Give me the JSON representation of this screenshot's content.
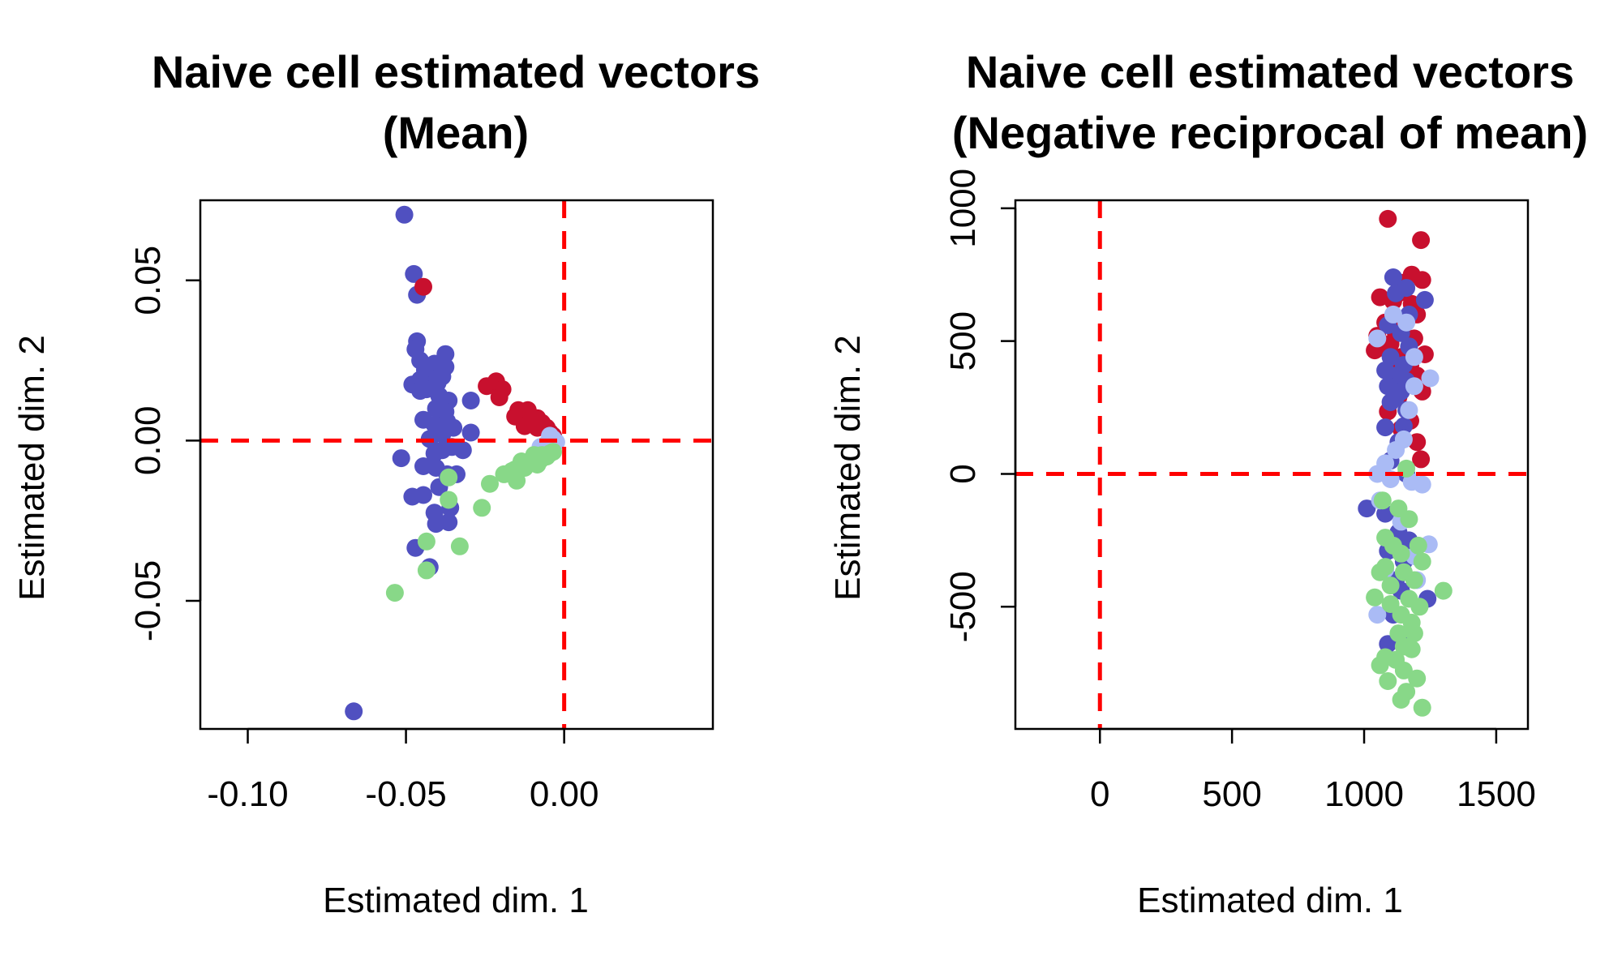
{
  "chart_data": [
    {
      "type": "scatter",
      "title_lines": [
        "Naive cell estimated vectors",
        "(Mean)"
      ],
      "xlabel": "Estimated dim. 1",
      "ylabel": "Estimated dim. 2",
      "xlim": [
        -0.115,
        0.047
      ],
      "ylim": [
        -0.09,
        0.075
      ],
      "xticks": [
        -0.1,
        -0.05,
        0.0
      ],
      "xtick_labels": [
        "-0.10",
        "-0.05",
        "0.00"
      ],
      "yticks": [
        -0.05,
        0.0,
        0.05
      ],
      "ytick_labels": [
        "-0.05",
        "0.00",
        "0.05"
      ],
      "ref_lines": {
        "x": 0,
        "y": 0
      },
      "grid": false,
      "series": [
        {
          "color": "#5050c0",
          "points": [
            [
              -0.0505,
              0.0705
            ],
            [
              -0.0475,
              0.052
            ],
            [
              -0.0465,
              0.0455
            ],
            [
              -0.0465,
              0.031
            ],
            [
              -0.047,
              0.0285
            ],
            [
              -0.0455,
              0.025
            ],
            [
              -0.044,
              0.022
            ],
            [
              -0.041,
              0.024
            ],
            [
              -0.0375,
              0.027
            ],
            [
              -0.0375,
              0.023
            ],
            [
              -0.0385,
              0.02
            ],
            [
              -0.04,
              0.018
            ],
            [
              -0.0425,
              0.0195
            ],
            [
              -0.0455,
              0.019
            ],
            [
              -0.048,
              0.0175
            ],
            [
              -0.0455,
              0.0155
            ],
            [
              -0.0435,
              0.016
            ],
            [
              -0.0395,
              0.014
            ],
            [
              -0.0365,
              0.0125
            ],
            [
              -0.0375,
              0.009
            ],
            [
              -0.0405,
              0.01
            ],
            [
              -0.0445,
              0.0065
            ],
            [
              -0.041,
              0.005
            ],
            [
              -0.037,
              0.006
            ],
            [
              -0.035,
              0.004
            ],
            [
              -0.0385,
              0.002
            ],
            [
              -0.0425,
              0.0005
            ],
            [
              -0.0355,
              -0.002
            ],
            [
              -0.0385,
              -0.003
            ],
            [
              -0.041,
              -0.004
            ],
            [
              -0.0445,
              -0.008
            ],
            [
              -0.0405,
              -0.0085
            ],
            [
              -0.037,
              -0.0105
            ],
            [
              -0.034,
              -0.0105
            ],
            [
              -0.0515,
              -0.0055
            ],
            [
              -0.048,
              -0.0175
            ],
            [
              -0.0445,
              -0.017
            ],
            [
              -0.0395,
              -0.0145
            ],
            [
              -0.036,
              -0.021
            ],
            [
              -0.041,
              -0.0225
            ],
            [
              -0.0365,
              -0.0255
            ],
            [
              -0.0405,
              -0.026
            ],
            [
              -0.047,
              -0.0335
            ],
            [
              -0.0425,
              -0.0395
            ],
            [
              -0.0295,
              0.0125
            ],
            [
              -0.0295,
              0.0025
            ],
            [
              -0.032,
              -0.003
            ],
            [
              -0.0665,
              -0.0845
            ]
          ]
        },
        {
          "color": "#c8102e",
          "points": [
            [
              -0.0445,
              0.048
            ],
            [
              -0.0245,
              0.017
            ],
            [
              -0.0215,
              0.0185
            ],
            [
              -0.0195,
              0.016
            ],
            [
              -0.0205,
              0.0135
            ],
            [
              -0.0145,
              0.0095
            ],
            [
              -0.0115,
              0.0095
            ],
            [
              -0.0155,
              0.0075
            ],
            [
              -0.0105,
              0.0065
            ],
            [
              -0.0085,
              0.007
            ],
            [
              -0.007,
              0.0055
            ],
            [
              -0.0125,
              0.0045
            ],
            [
              -0.0085,
              0.004
            ],
            [
              -0.0055,
              0.004
            ],
            [
              -0.0045,
              0.0025
            ],
            [
              -0.0035,
              0.0015
            ]
          ]
        },
        {
          "color": "#aabbf5",
          "points": [
            [
              -0.0045,
              0.0015
            ],
            [
              -0.0035,
              0.0005
            ],
            [
              -0.0055,
              -0.001
            ],
            [
              -0.0045,
              -0.0005
            ],
            [
              -0.0025,
              -0.0005
            ],
            [
              -0.0075,
              -0.002
            ],
            [
              -0.0065,
              -0.003
            ]
          ]
        },
        {
          "color": "#88d888",
          "points": [
            [
              -0.0535,
              -0.0475
            ],
            [
              -0.0435,
              -0.0405
            ],
            [
              -0.0435,
              -0.0315
            ],
            [
              -0.033,
              -0.033
            ],
            [
              -0.0365,
              -0.0115
            ],
            [
              -0.0365,
              -0.0185
            ],
            [
              -0.026,
              -0.021
            ],
            [
              -0.0235,
              -0.0135
            ],
            [
              -0.019,
              -0.0105
            ],
            [
              -0.0155,
              -0.009
            ],
            [
              -0.0165,
              -0.0095
            ],
            [
              -0.015,
              -0.0125
            ],
            [
              -0.0135,
              -0.0065
            ],
            [
              -0.0125,
              -0.0085
            ],
            [
              -0.0105,
              -0.007
            ],
            [
              -0.009,
              -0.0055
            ],
            [
              -0.0085,
              -0.0075
            ],
            [
              -0.007,
              -0.0045
            ],
            [
              -0.0055,
              -0.005
            ],
            [
              -0.0045,
              -0.004
            ],
            [
              -0.0035,
              -0.0035
            ],
            [
              -0.0075,
              -0.006
            ],
            [
              -0.0095,
              -0.0045
            ]
          ]
        }
      ]
    },
    {
      "type": "scatter",
      "title_lines": [
        "Naive cell estimated vectors",
        "(Negative reciprocal of mean)"
      ],
      "xlabel": "Estimated dim. 1",
      "ylabel": "Estimated dim. 2",
      "xlim": [
        -320,
        1620
      ],
      "ylim": [
        -960,
        1030
      ],
      "xticks": [
        0,
        500,
        1000,
        1500
      ],
      "xtick_labels": [
        "0",
        "500",
        "1000",
        "1500"
      ],
      "yticks": [
        -500,
        0,
        500,
        1000
      ],
      "ytick_labels": [
        "-500",
        "0",
        "500",
        "1000"
      ],
      "ref_lines": {
        "x": 0,
        "y": 0
      },
      "grid": false,
      "series": [
        {
          "color": "#c8102e",
          "points": [
            [
              1090,
              960
            ],
            [
              1215,
              880
            ],
            [
              1180,
              750
            ],
            [
              1220,
              730
            ],
            [
              1150,
              720
            ],
            [
              1130,
              680
            ],
            [
              1060,
              665
            ],
            [
              1110,
              650
            ],
            [
              1180,
              640
            ],
            [
              1200,
              600
            ],
            [
              1080,
              570
            ],
            [
              1150,
              560
            ],
            [
              1050,
              520
            ],
            [
              1120,
              530
            ],
            [
              1190,
              510
            ],
            [
              1100,
              490
            ],
            [
              1070,
              475
            ],
            [
              1230,
              450
            ],
            [
              1040,
              465
            ],
            [
              1140,
              440
            ],
            [
              1175,
              410
            ],
            [
              1110,
              390
            ],
            [
              1200,
              370
            ],
            [
              1160,
              345
            ],
            [
              1220,
              310
            ],
            [
              1130,
              290
            ],
            [
              1090,
              235
            ],
            [
              1175,
              200
            ],
            [
              1140,
              170
            ],
            [
              1200,
              120
            ],
            [
              1215,
              55
            ]
          ]
        },
        {
          "color": "#5050c0",
          "points": [
            [
              1110,
              740
            ],
            [
              1160,
              700
            ],
            [
              1120,
              680
            ],
            [
              1230,
              655
            ],
            [
              1170,
              600
            ],
            [
              1090,
              560
            ],
            [
              1140,
              530
            ],
            [
              1170,
              480
            ],
            [
              1100,
              440
            ],
            [
              1150,
              410
            ],
            [
              1080,
              390
            ],
            [
              1120,
              370
            ],
            [
              1160,
              350
            ],
            [
              1090,
              330
            ],
            [
              1140,
              310
            ],
            [
              1120,
              290
            ],
            [
              1100,
              270
            ],
            [
              1160,
              240
            ],
            [
              1080,
              175
            ],
            [
              1150,
              180
            ],
            [
              1130,
              120
            ],
            [
              1100,
              50
            ],
            [
              1160,
              0
            ],
            [
              1010,
              -130
            ],
            [
              1080,
              -150
            ],
            [
              1130,
              -220
            ],
            [
              1170,
              -250
            ],
            [
              1090,
              -290
            ],
            [
              1150,
              -330
            ],
            [
              1120,
              -400
            ],
            [
              1140,
              -440
            ],
            [
              1240,
              -470
            ],
            [
              1110,
              -530
            ],
            [
              1150,
              -610
            ],
            [
              1090,
              -640
            ]
          ]
        },
        {
          "color": "#aabbf5",
          "points": [
            [
              1110,
              600
            ],
            [
              1050,
              510
            ],
            [
              1160,
              570
            ],
            [
              1190,
              440
            ],
            [
              1250,
              360
            ],
            [
              1190,
              330
            ],
            [
              1170,
              240
            ],
            [
              1150,
              130
            ],
            [
              1120,
              90
            ],
            [
              1080,
              40
            ],
            [
              1050,
              0
            ],
            [
              1100,
              -20
            ],
            [
              1180,
              -30
            ],
            [
              1220,
              -40
            ],
            [
              1060,
              -100
            ],
            [
              1140,
              -180
            ],
            [
              1245,
              -265
            ],
            [
              1190,
              -310
            ],
            [
              1080,
              -360
            ],
            [
              1200,
              -400
            ],
            [
              1050,
              -530
            ]
          ]
        },
        {
          "color": "#88d888",
          "points": [
            [
              1160,
              20
            ],
            [
              1070,
              -100
            ],
            [
              1130,
              -130
            ],
            [
              1170,
              -170
            ],
            [
              1080,
              -240
            ],
            [
              1110,
              -270
            ],
            [
              1205,
              -270
            ],
            [
              1140,
              -300
            ],
            [
              1220,
              -330
            ],
            [
              1080,
              -350
            ],
            [
              1150,
              -370
            ],
            [
              1060,
              -370
            ],
            [
              1190,
              -400
            ],
            [
              1100,
              -420
            ],
            [
              1300,
              -440
            ],
            [
              1040,
              -465
            ],
            [
              1170,
              -470
            ],
            [
              1100,
              -490
            ],
            [
              1210,
              -500
            ],
            [
              1140,
              -530
            ],
            [
              1180,
              -560
            ],
            [
              1130,
              -600
            ],
            [
              1190,
              -600
            ],
            [
              1150,
              -650
            ],
            [
              1180,
              -660
            ],
            [
              1080,
              -690
            ],
            [
              1120,
              -700
            ],
            [
              1060,
              -720
            ],
            [
              1150,
              -740
            ],
            [
              1200,
              -770
            ],
            [
              1090,
              -780
            ],
            [
              1160,
              -820
            ],
            [
              1140,
              -850
            ],
            [
              1220,
              -880
            ]
          ]
        }
      ]
    }
  ]
}
